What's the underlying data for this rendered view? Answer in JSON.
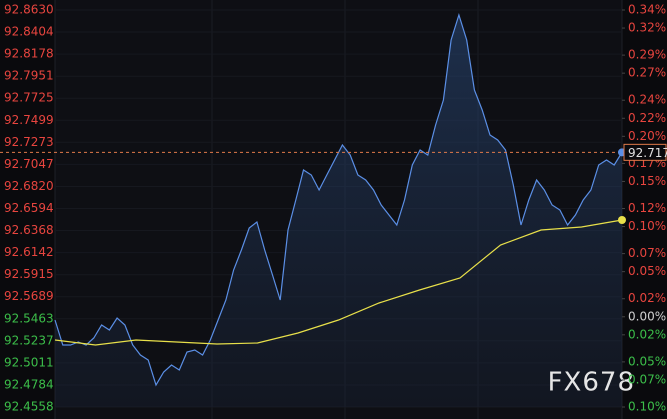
{
  "chart_data": {
    "type": "line",
    "watermark": "FX678",
    "last_label": "92.717",
    "ylim": [
      92.4558,
      92.863
    ],
    "yticks": [
      {
        "value": 92.863,
        "label": "92.8630"
      },
      92.8404,
      92.8178,
      92.7951,
      92.7725,
      92.7499,
      92.7273,
      92.7047,
      {
        "value": 92.682,
        "label": "92.6820"
      },
      92.6594,
      92.6368,
      92.6142,
      92.5915,
      92.5689,
      92.5463,
      92.5237,
      92.5011,
      92.4784,
      92.4558
    ],
    "y2lim": [
      -0.1,
      0.34
    ],
    "y2ticks": [
      {
        "value": 0.34,
        "label": "0.34%"
      },
      {
        "value": 0.32,
        "label": "0.32%"
      },
      {
        "value": 0.29,
        "label": "0.29%"
      },
      {
        "value": 0.27,
        "label": "0.27%"
      },
      {
        "value": 0.24,
        "label": "0.24%"
      },
      {
        "value": 0.22,
        "label": "0.22%"
      },
      {
        "value": 0.2,
        "label": "0.20%"
      },
      {
        "value": 0.17,
        "label": "0.17%"
      },
      {
        "value": 0.15,
        "label": "0.15%"
      },
      {
        "value": 0.12,
        "label": "0.12%"
      },
      {
        "value": 0.1,
        "label": "0.10%"
      },
      {
        "value": 0.07,
        "label": "0.07%"
      },
      {
        "value": 0.05,
        "label": "0.05%"
      },
      {
        "value": 0.02,
        "label": "0.02%"
      },
      {
        "value": 0,
        "label": "0.00%"
      },
      {
        "value": -0.02,
        "label": "0.02%"
      },
      {
        "value": -0.05,
        "label": "0.05%"
      },
      {
        "value": -0.07,
        "label": "0.07%"
      },
      {
        "value": -0.1,
        "label": "0.10%"
      }
    ],
    "up_color": "#e8453f",
    "down_color": "#3cbf4a",
    "neutral_color": "#d0d0d0",
    "grid": true,
    "series": [
      {
        "color": "#5b8fe6",
        "values": [
          92.545,
          92.5194,
          92.5194,
          92.5225,
          92.5194,
          92.5266,
          92.5399,
          92.5348,
          92.5471,
          92.5399,
          92.5194,
          92.5091,
          92.504,
          92.4784,
          92.4917,
          92.4989,
          92.4937,
          92.5122,
          92.5143,
          92.5091,
          92.5245,
          92.545,
          92.5655,
          92.5963,
          92.6168,
          92.6394,
          92.6456,
          92.6168,
          92.5912,
          92.5655,
          92.6373,
          92.6681,
          92.6989,
          92.6938,
          92.6784,
          92.6938,
          92.7091,
          92.7245,
          92.7143,
          92.6938,
          92.6886,
          92.6784,
          92.663,
          92.6527,
          92.6425,
          92.6681,
          92.704,
          92.7194,
          92.7143,
          92.745,
          92.7707,
          92.8322,
          92.8579,
          92.8322,
          92.7809,
          92.7604,
          92.7348,
          92.7297,
          92.7194,
          92.6835,
          92.6425,
          92.6681,
          92.6886,
          92.6784,
          92.663,
          92.6579,
          92.6425,
          92.6527,
          92.6681,
          92.6784,
          92.704,
          92.7091,
          92.704,
          92.717
        ]
      },
      {
        "color": "#e8e04a",
        "values": [
          92.5245,
          92.5194,
          92.5245,
          92.5225,
          92.5204,
          92.5214,
          92.5317,
          92.545,
          92.5625,
          92.5758,
          92.5881,
          92.622,
          92.6373,
          92.6404,
          92.6476
        ]
      }
    ]
  }
}
